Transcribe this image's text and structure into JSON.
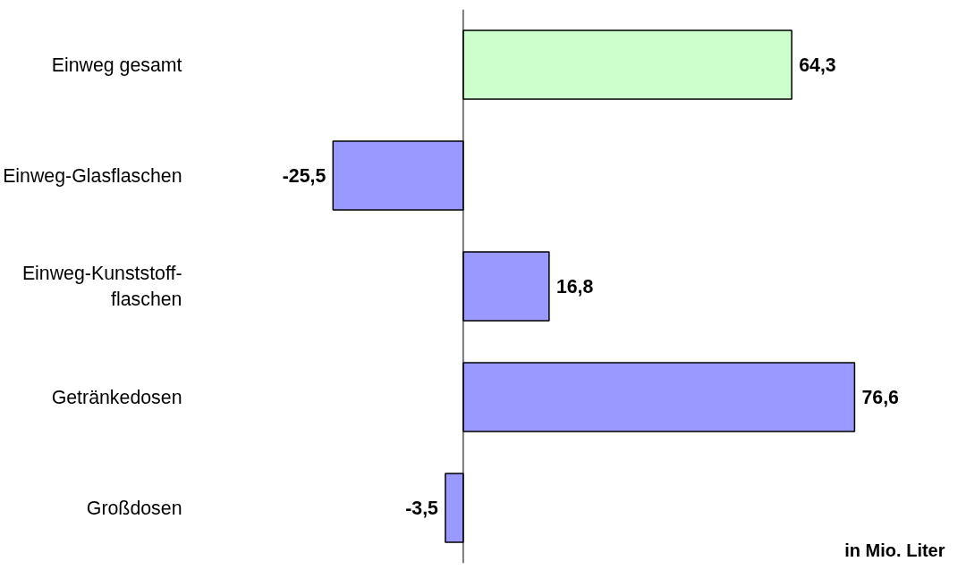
{
  "chart_data": {
    "type": "bar",
    "orientation": "horizontal",
    "categories": [
      "Einweg gesamt",
      "Einweg-Glasflaschen",
      "Einweg-Kunststoff-\nflaschen",
      "Getränkedosen",
      "Großdosen"
    ],
    "values": [
      64.3,
      -25.5,
      16.8,
      76.6,
      -3.5
    ],
    "colors": [
      "#ccffcc",
      "#9999ff",
      "#9999ff",
      "#9999ff",
      "#9999ff"
    ],
    "value_labels": [
      "64,3",
      "-25,5",
      "16,8",
      "76,6",
      "-3,5"
    ],
    "grid": false,
    "tick_labels": "y",
    "annotations": [
      "in Mio. Liter"
    ]
  }
}
